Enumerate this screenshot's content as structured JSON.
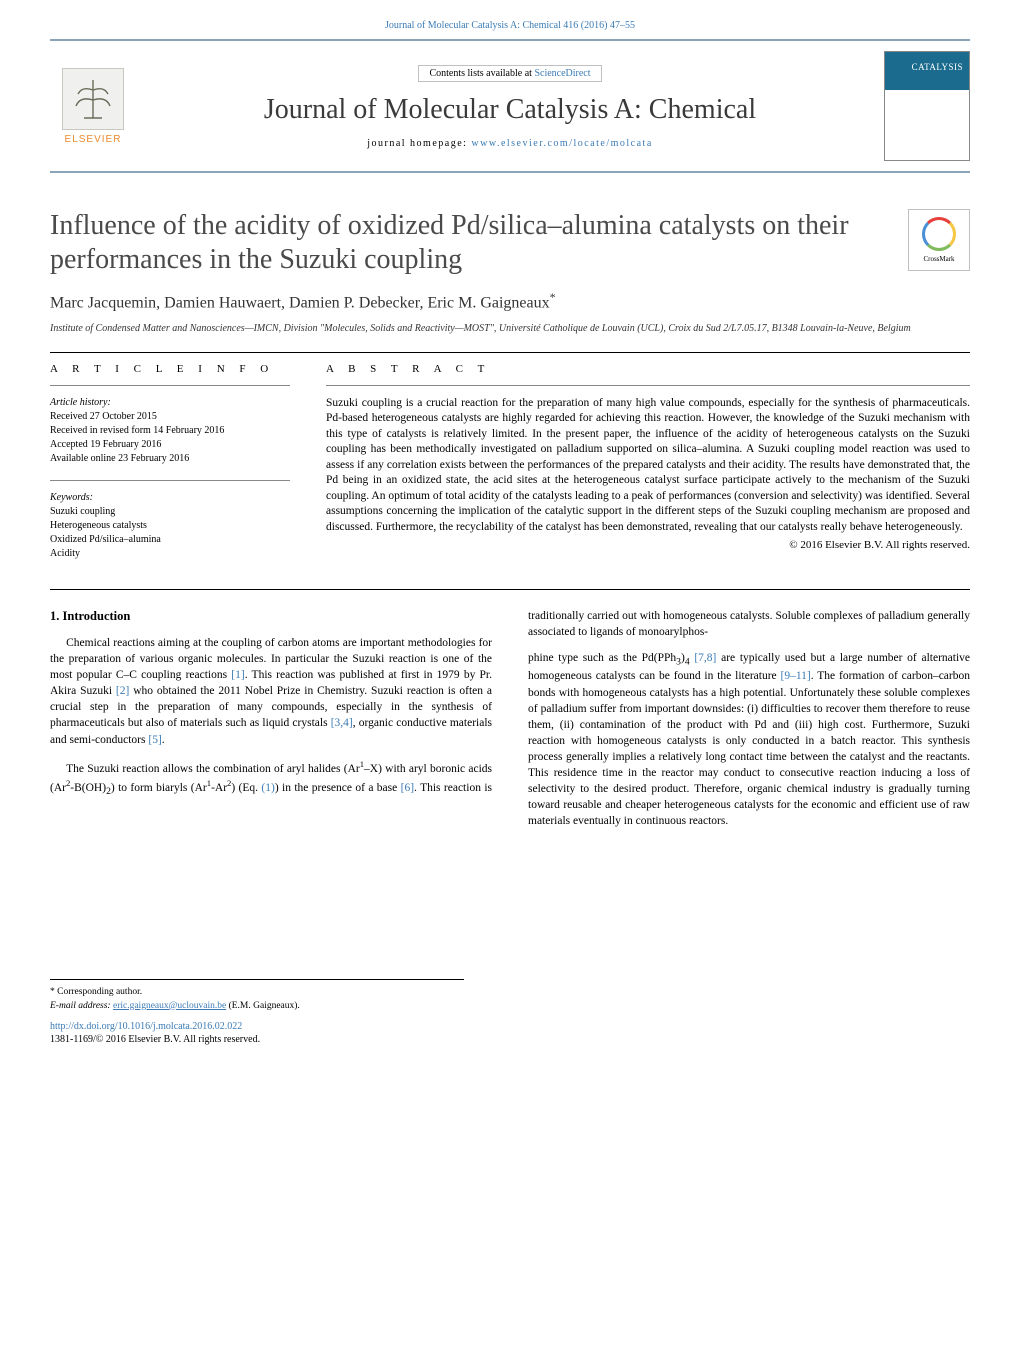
{
  "header": {
    "running_citation": "Journal of Molecular Catalysis A: Chemical 416 (2016) 47–55",
    "contents_prefix": "Contents lists available at ",
    "contents_link": "ScienceDirect",
    "journal_title": "Journal of Molecular Catalysis A: Chemical",
    "homepage_label": "journal homepage: ",
    "homepage_url": "www.elsevier.com/locate/molcata",
    "elsevier_word": "ELSEVIER",
    "cover_label": "CATALYSIS",
    "crossmark_label": "CrossMark"
  },
  "article": {
    "title": "Influence of the acidity of oxidized Pd/silica–alumina catalysts on their performances in the Suzuki coupling",
    "authors": "Marc Jacquemin, Damien Hauwaert, Damien P. Debecker, Eric M. Gaigneaux",
    "corr_marker": "*",
    "affiliation": "Institute of Condensed Matter and Nanosciences—IMCN, Division \"Molecules, Solids and Reactivity—MOST\", Université Catholique de Louvain (UCL), Croix du Sud 2/L7.05.17, B1348 Louvain-la-Neuve, Belgium"
  },
  "info": {
    "section_label": "A R T I C L E   I N F O",
    "history_label": "Article history:",
    "h1": "Received 27 October 2015",
    "h2": "Received in revised form 14 February 2016",
    "h3": "Accepted 19 February 2016",
    "h4": "Available online 23 February 2016",
    "keywords_label": "Keywords:",
    "kw1": "Suzuki coupling",
    "kw2": "Heterogeneous catalysts",
    "kw3": "Oxidized Pd/silica–alumina",
    "kw4": "Acidity"
  },
  "abstract": {
    "section_label": "A B S T R A C T",
    "text": "Suzuki coupling is a crucial reaction for the preparation of many high value compounds, especially for the synthesis of pharmaceuticals. Pd-based heterogeneous catalysts are highly regarded for achieving this reaction. However, the knowledge of the Suzuki mechanism with this type of catalysts is relatively limited. In the present paper, the influence of the acidity of heterogeneous catalysts on the Suzuki coupling has been methodically investigated on palladium supported on silica–alumina. A Suzuki coupling model reaction was used to assess if any correlation exists between the performances of the prepared catalysts and their acidity. The results have demonstrated that, the Pd being in an oxidized state, the acid sites at the heterogeneous catalyst surface participate actively to the mechanism of the Suzuki coupling. An optimum of total acidity of the catalysts leading to a peak of performances (conversion and selectivity) was identified. Several assumptions concerning the implication of the catalytic support in the different steps of the Suzuki coupling mechanism are proposed and discussed. Furthermore, the recyclability of the catalyst has been demonstrated, revealing that our catalysts really behave heterogeneously.",
    "copyright": "© 2016 Elsevier B.V. All rights reserved."
  },
  "body": {
    "heading1": "1. Introduction",
    "p1": "Chemical reactions aiming at the coupling of carbon atoms are important methodologies for the preparation of various organic molecules. In particular the Suzuki reaction is one of the most popular C–C coupling reactions [1]. This reaction was published at first in 1979 by Pr. Akira Suzuki [2] who obtained the 2011 Nobel Prize in Chemistry. Suzuki reaction is often a crucial step in the preparation of many compounds, especially in the synthesis of pharmaceuticals but also of materials such as liquid crystals [3,4], organic conductive materials and semi-conductors [5].",
    "p2_a": "The Suzuki reaction allows the combination of aryl halides (Ar",
    "p2_b": "–X) with aryl boronic acids (Ar",
    "p2_c": "-B(OH)",
    "p2_d": ") to form biaryls (Ar",
    "p2_e": "-Ar",
    "p2_f": ") (Eq. ",
    "p2_g": ") in the presence of a base ",
    "p2_h": ". This reaction is traditionally carried out with homogeneous catalysts. Soluble complexes of palladium generally associated to ligands of monoarylphos-",
    "p3_a": "phine type such as the Pd(PPh",
    "p3_b": ")",
    "p3_c": " [7,8] are typically used but a large number of alternative homogeneous catalysts can be found in the literature [9–11]. The formation of carbon–carbon bonds with homogeneous catalysts has a high potential. Unfortunately these soluble complexes of palladium suffer from important downsides: (i) difficulties to recover them therefore to reuse them, (ii) contamination of the product with Pd and (iii) high cost. Furthermore, Suzuki reaction with homogeneous catalysts is only conducted in a batch reactor. This synthesis process generally implies a relatively long contact time between the catalyst and the reactants. This residence time in the reactor may conduct to consecutive reaction inducing a loss of selectivity to the desired product. Therefore, organic chemical industry is gradually turning toward reusable and cheaper heterogeneous catalysts for the economic and efficient use of raw materials eventually in continuous reactors.",
    "ref_1": "[1]",
    "ref_2": "[2]",
    "ref_34": "[3,4]",
    "ref_5": "[5]",
    "eq_1": "(1)",
    "ref_6": "[6]",
    "ref_78": "[7,8]",
    "ref_911": "[9–11]"
  },
  "footnotes": {
    "corr": "* Corresponding author.",
    "email_label": "E-mail address: ",
    "email": "eric.gaigneaux@uclouvain.be",
    "email_author": " (E.M. Gaigneaux).",
    "doi": "http://dx.doi.org/10.1016/j.molcata.2016.02.022",
    "issn": "1381-1169/© 2016 Elsevier B.V. All rights reserved."
  },
  "colors": {
    "link": "#3b7bb5",
    "rule": "#8aa4b8",
    "elsevier_orange": "#e98c2e"
  }
}
